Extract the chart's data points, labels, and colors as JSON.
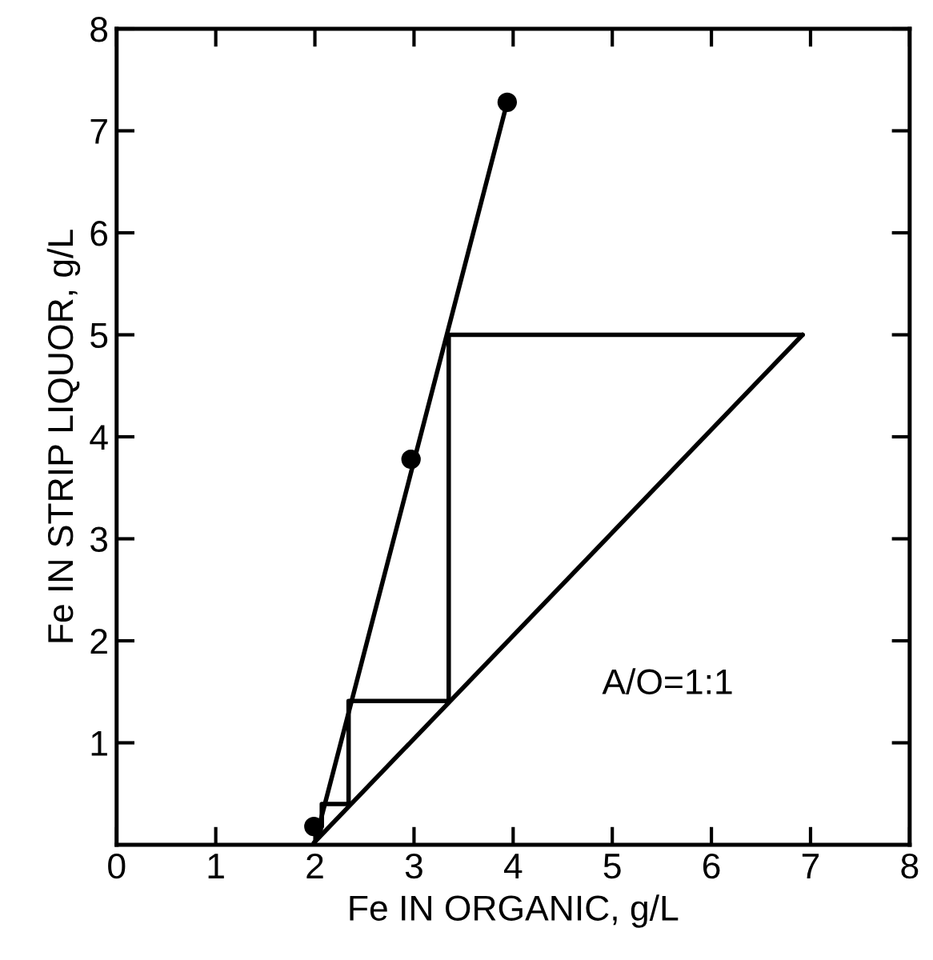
{
  "chart_data": {
    "type": "line",
    "xlabel": "Fe IN ORGANIC, g/L",
    "ylabel": "Fe IN STRIP LIQUOR, g/L",
    "series": [
      {
        "type": "scatter",
        "x": [
          1.99,
          2.97,
          3.94
        ],
        "values": [
          0.18,
          3.78,
          7.28
        ],
        "color": "#000000",
        "marker": "circle"
      },
      {
        "x": [
          2.01,
          3.94
        ],
        "values": [
          0.06,
          7.28
        ],
        "color": "#000000"
      },
      {
        "x": [
          1.99,
          6.92
        ],
        "values": [
          0.02,
          5.0
        ],
        "color": "#000000"
      },
      {
        "x": [
          6.92,
          3.35,
          3.35,
          2.34,
          2.34,
          2.07,
          2.07
        ],
        "values": [
          5.0,
          5.0,
          1.41,
          1.41,
          0.4,
          0.4,
          0.18
        ],
        "color": "#000000"
      }
    ],
    "xlim": [
      0,
      8
    ],
    "ylim": [
      0,
      8
    ],
    "xticks": [
      0,
      1,
      2,
      3,
      4,
      5,
      6,
      7,
      8
    ],
    "yticks": [
      1,
      2,
      3,
      4,
      5,
      6,
      7,
      8
    ],
    "annotations": [
      "A/O=1:1"
    ],
    "grid": false,
    "legend": false
  }
}
